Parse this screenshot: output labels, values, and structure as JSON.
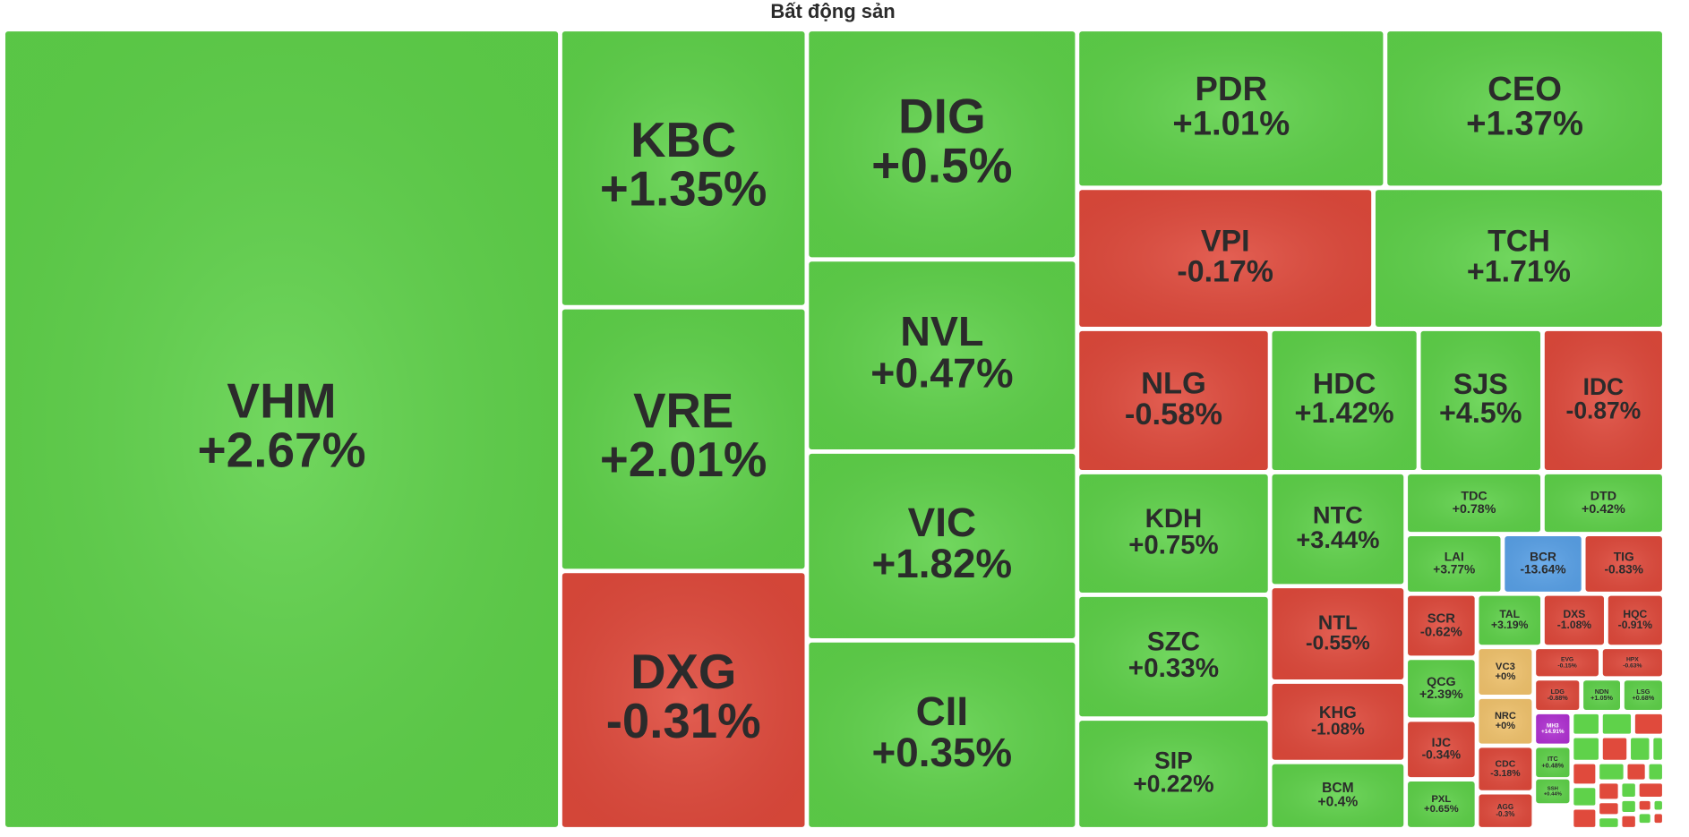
{
  "chart_data": {
    "type": "treemap",
    "title": "Bất động sản",
    "categories": [
      "VHM",
      "KBC",
      "VRE",
      "DXG",
      "DIG",
      "NVL",
      "VIC",
      "CII",
      "PDR",
      "CEO",
      "VPI",
      "TCH",
      "NLG",
      "HDC",
      "SJS",
      "IDC",
      "KDH",
      "SZC",
      "SIP",
      "NTC",
      "NTL",
      "KHG",
      "BCM",
      "TDC",
      "DTD",
      "LAI",
      "BCR",
      "TIG",
      "SCR",
      "TAL",
      "DXS",
      "HQC",
      "QCG",
      "VC3",
      "NRC",
      "IJC",
      "CDC",
      "PXL",
      "AGG",
      "EVG",
      "HPX",
      "LDG",
      "NDN",
      "LSG",
      "MH3",
      "ITC",
      "SSH"
    ],
    "values": [
      2.67,
      1.35,
      2.01,
      -0.31,
      0.5,
      0.47,
      1.82,
      0.35,
      1.01,
      1.37,
      -0.17,
      1.71,
      -0.58,
      1.42,
      4.5,
      -0.87,
      0.75,
      0.33,
      0.22,
      3.44,
      -0.55,
      -1.08,
      0.4,
      0.78,
      0.42,
      3.77,
      -13.64,
      -0.83,
      -0.62,
      3.19,
      -1.08,
      -0.91,
      2.39,
      0,
      0,
      -0.34,
      -3.18,
      0.65,
      -0.3,
      -0.15,
      -0.63,
      -0.88,
      1.05,
      0.68,
      14.91,
      0.48,
      0.44
    ],
    "value_labels": [
      "+2.67%",
      "+1.35%",
      "+2.01%",
      "-0.31%",
      "+0.5%",
      "+0.47%",
      "+1.82%",
      "+0.35%",
      "+1.01%",
      "+1.37%",
      "-0.17%",
      "+1.71%",
      "-0.58%",
      "+1.42%",
      "+4.5%",
      "-0.87%",
      "+0.75%",
      "+0.33%",
      "+0.22%",
      "+3.44%",
      "-0.55%",
      "-1.08%",
      "+0.4%",
      "+0.78%",
      "+0.42%",
      "+3.77%",
      "-13.64%",
      "-0.83%",
      "-0.62%",
      "+3.19%",
      "-1.08%",
      "-0.91%",
      "+2.39%",
      "+0%",
      "+0%",
      "-0.34%",
      "-3.18%",
      "+0.65%",
      "-0.3%",
      "-0.15%",
      "-0.63%",
      "-0.88%",
      "+1.05%",
      "+0.68%",
      "+14.91%",
      "+0.48%",
      "+0.44%"
    ],
    "colors": [
      "#5fd24a",
      "#5fd24a",
      "#5fd24a",
      "#e04a3c",
      "#5fd24a",
      "#5fd24a",
      "#5fd24a",
      "#5fd24a",
      "#5fd24a",
      "#5fd24a",
      "#e04a3c",
      "#5fd24a",
      "#e04a3c",
      "#5fd24a",
      "#5fd24a",
      "#e04a3c",
      "#5fd24a",
      "#5fd24a",
      "#5fd24a",
      "#5fd24a",
      "#e04a3c",
      "#e04a3c",
      "#5fd24a",
      "#5fd24a",
      "#5fd24a",
      "#5fd24a",
      "#5aa2e8",
      "#e04a3c",
      "#e04a3c",
      "#5fd24a",
      "#e04a3c",
      "#e04a3c",
      "#5fd24a",
      "#f2c46e",
      "#f2c46e",
      "#e04a3c",
      "#e04a3c",
      "#5fd24a",
      "#e04a3c",
      "#e04a3c",
      "#e04a3c",
      "#e04a3c",
      "#5fd24a",
      "#5fd24a",
      "#b132d3",
      "#5fd24a",
      "#5fd24a"
    ]
  }
}
